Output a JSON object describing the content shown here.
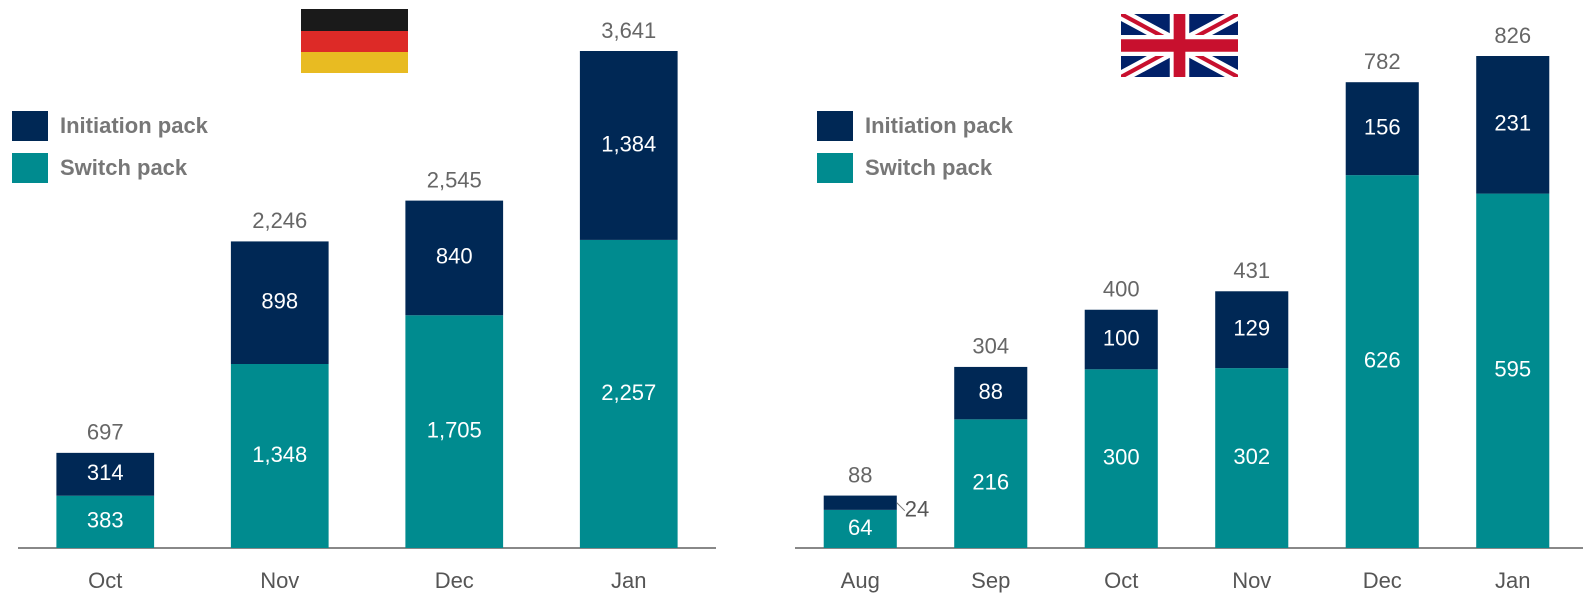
{
  "chart_data": [
    {
      "type": "bar",
      "stacked": true,
      "categories": [
        "Oct",
        "Nov",
        "Dec",
        "Jan"
      ],
      "series": [
        {
          "name": "Switch pack",
          "color": "#008b8f",
          "values": [
            383,
            1348,
            1705,
            2257
          ],
          "value_labels": [
            "383",
            "1,348",
            "1,705",
            "2,257"
          ]
        },
        {
          "name": "Initiation pack",
          "color": "#002855",
          "values": [
            314,
            898,
            840,
            1384
          ],
          "value_labels": [
            "314",
            "898",
            "840",
            "1,384"
          ]
        }
      ],
      "totals": [
        697,
        2246,
        2545,
        3641
      ],
      "total_labels": [
        "697",
        "2,246",
        "2,545",
        "3,641"
      ]
    },
    {
      "type": "bar",
      "stacked": true,
      "categories": [
        "Aug",
        "Sep",
        "Oct",
        "Nov",
        "Dec",
        "Jan"
      ],
      "series": [
        {
          "name": "Switch pack",
          "color": "#008b8f",
          "values": [
            64,
            216,
            300,
            302,
            626,
            595
          ]
        },
        {
          "name": "Initiation pack",
          "color": "#002855",
          "values": [
            24,
            88,
            100,
            129,
            156,
            231
          ]
        }
      ],
      "totals": [
        88,
        304,
        400,
        431,
        782,
        826
      ]
    }
  ]
}
